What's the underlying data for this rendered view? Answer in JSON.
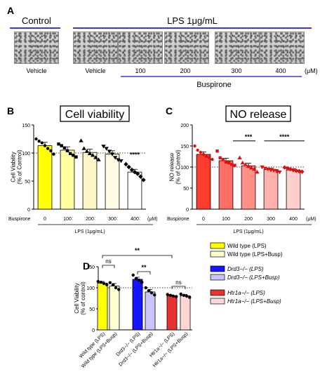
{
  "panel_a": {
    "letter": "A",
    "control_title": "Control",
    "lps_title": "LPS 1μg/mL",
    "image_labels": [
      "Vehicle",
      "Vehicle",
      "100",
      "200",
      "300",
      "400"
    ],
    "unit": "(μM)",
    "drug": "Buspirone"
  },
  "chart_data": [
    {
      "id": "B",
      "type": "bar",
      "letter": "B",
      "title": "Cell viability",
      "ylabel": "Cell Viability\n(% of Control)",
      "ylim": [
        0,
        150
      ],
      "yticks": [
        0,
        50,
        100,
        150
      ],
      "row_label": "Buspirone",
      "categories": [
        "0",
        "100",
        "200",
        "300",
        "400"
      ],
      "unit": "(μM)",
      "xlabel": "LPS (1μg/mL)",
      "values": [
        113,
        105,
        101,
        98,
        66
      ],
      "errors": [
        6,
        6,
        6,
        6,
        5
      ],
      "colors": [
        "#ffff00",
        "#ffffa0",
        "#fff6c8",
        "#fffbe4",
        "#ffffff"
      ],
      "markers": [
        "circle",
        "square",
        "triangle",
        "triangle-down",
        "diamond"
      ],
      "points": [
        [
          125,
          121,
          118,
          113,
          108,
          104,
          98
        ],
        [
          116,
          113,
          109,
          104,
          99,
          96,
          93
        ],
        [
          122,
          108,
          103,
          99,
          96,
          92,
          88
        ],
        [
          112,
          108,
          103,
          98,
          92,
          88,
          86
        ],
        [
          80,
          75,
          70,
          66,
          63,
          58,
          52
        ]
      ],
      "reference": 100,
      "annotations": [
        "****"
      ]
    },
    {
      "id": "C",
      "type": "bar",
      "letter": "C",
      "title": "NO release",
      "ylabel": "NO release\n(% of Control)",
      "ylim": [
        0,
        200
      ],
      "yticks": [
        0,
        50,
        100,
        150,
        200
      ],
      "row_label": "Buspirone",
      "categories": [
        "0",
        "100",
        "200",
        "300",
        "400"
      ],
      "unit": "(μM)",
      "xlabel": "LPS (1μg/mL)",
      "values": [
        130,
        115,
        103,
        94,
        93
      ],
      "errors": [
        6,
        6,
        6,
        3,
        3
      ],
      "colors": [
        "#ff3b2e",
        "#ff6e64",
        "#ff8f87",
        "#ffb1aa",
        "#ffd0cb"
      ],
      "markers": [
        "circle",
        "square",
        "triangle",
        "triangle-down",
        "diamond"
      ],
      "points": [
        [
          150,
          140,
          135,
          130,
          125,
          122,
          118
        ],
        [
          138,
          122,
          118,
          112,
          110,
          106,
          104
        ],
        [
          122,
          110,
          106,
          102,
          98,
          95,
          88
        ],
        [
          100,
          97,
          95,
          93,
          92,
          90,
          88
        ],
        [
          99,
          97,
          95,
          93,
          91,
          90,
          89
        ]
      ],
      "reference": 100,
      "annotations": [
        "***",
        "****"
      ]
    },
    {
      "id": "D",
      "type": "bar",
      "letter": "D",
      "ylabel": "Cell Viability\n(% of control)",
      "ylim": [
        0,
        150
      ],
      "yticks": [
        0,
        50,
        100,
        150
      ],
      "categories": [
        "Wild type (LPS)",
        "Wild type (LPS+Busp)",
        "Drd3−/− (LPS)",
        "Drd3−/− (LPS+Busp)",
        "Htr1a−/− (LPS)",
        "Htr1a−/− (LPS+Busp)"
      ],
      "values": [
        111,
        104,
        120,
        90,
        81,
        81
      ],
      "errors": [
        4,
        6,
        5,
        6,
        2,
        3
      ],
      "colors": [
        "#ffff00",
        "#ffffd4",
        "#1515ff",
        "#c8c4ff",
        "#e8322e",
        "#ffd8d6"
      ],
      "points": [
        [
          115,
          113,
          110,
          107
        ],
        [
          112,
          107,
          100,
          96
        ],
        [
          130,
          122,
          118,
          113
        ],
        [
          100,
          93,
          88,
          83
        ],
        [
          84,
          82,
          80,
          79
        ],
        [
          85,
          82,
          80,
          77
        ]
      ],
      "reference": 100,
      "annotations": [
        "ns",
        "**",
        "**",
        "ns"
      ],
      "legend": [
        {
          "label": "Wild type (LPS)",
          "color": "#ffff00"
        },
        {
          "label": "Wild type (LPS+Busp)",
          "color": "#ffffd4"
        },
        {
          "label": "Drd3−/− (LPS)",
          "color": "#1515ff"
        },
        {
          "label": "Drd3−/− (LPS+Busp)",
          "color": "#c8c4ff"
        },
        {
          "label": "Htr1a−/− (LPS)",
          "color": "#e8322e"
        },
        {
          "label": "Htr1a−/− (LPS+Busp)",
          "color": "#ffd8d6"
        }
      ]
    }
  ]
}
